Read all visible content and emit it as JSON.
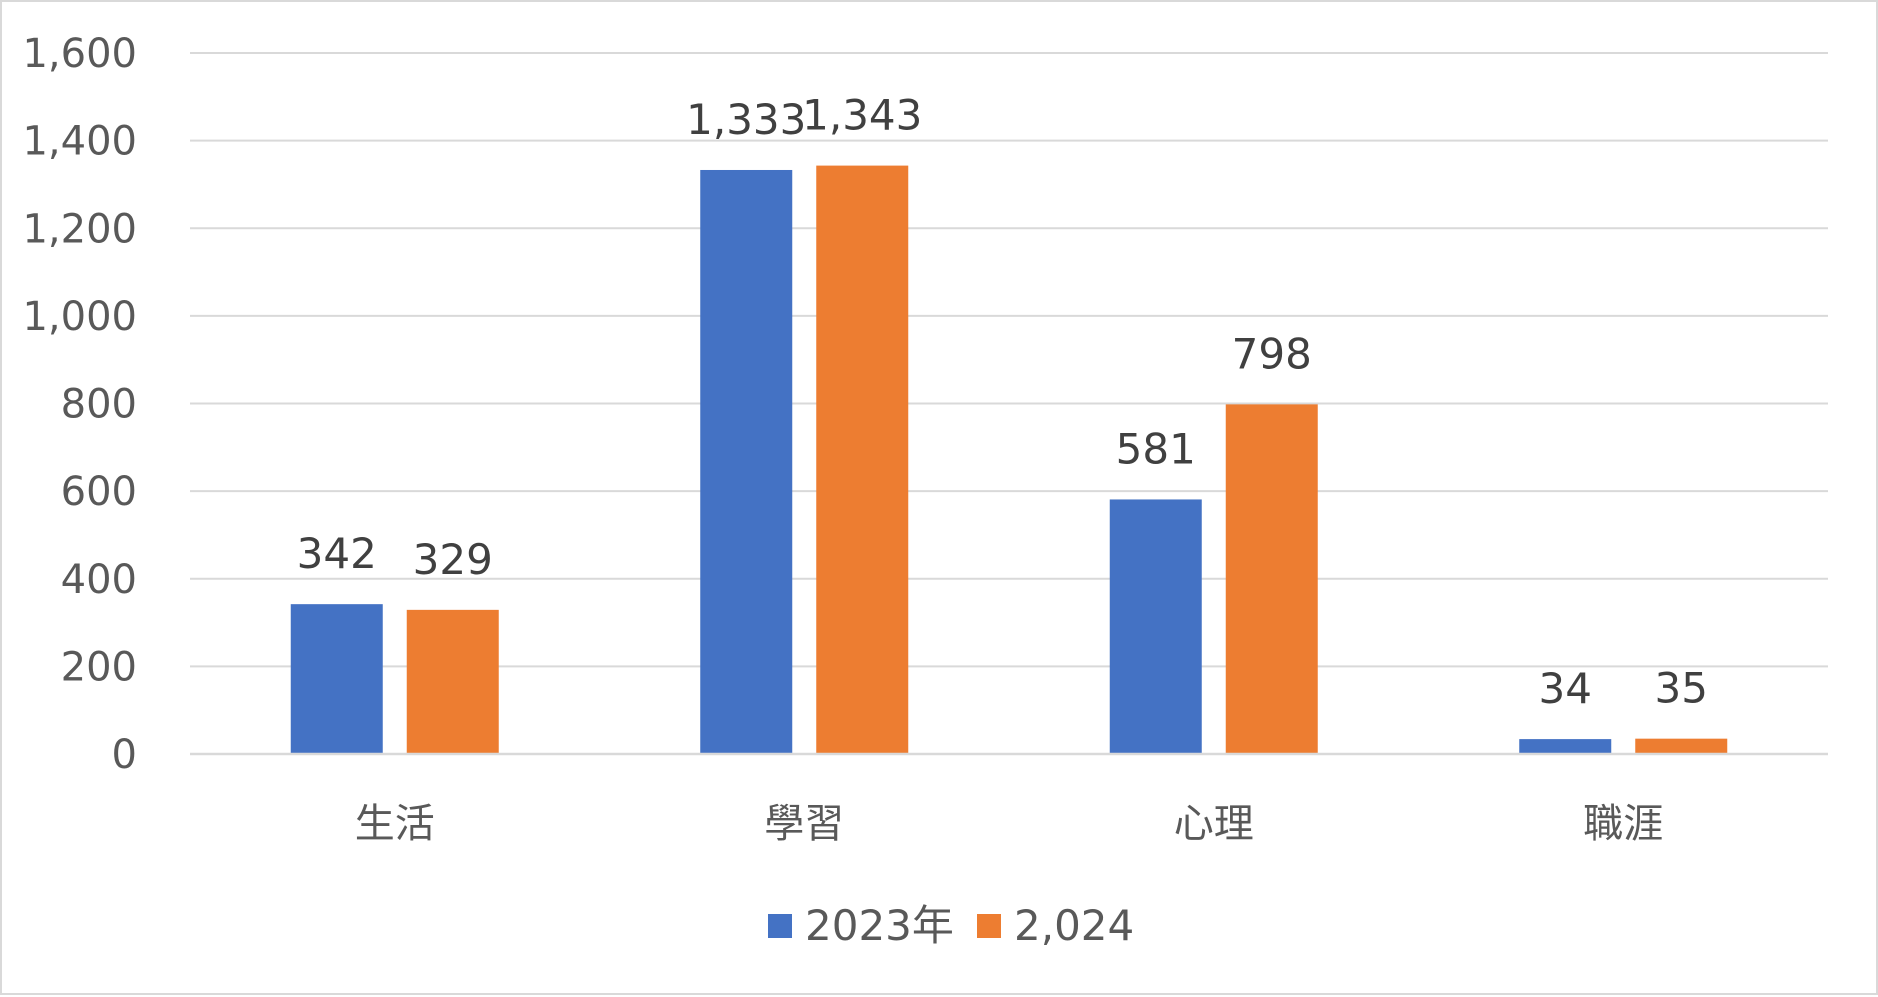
{
  "chart_data": {
    "type": "bar",
    "categories": [
      "生活",
      "學習",
      "心理",
      "職涯"
    ],
    "series": [
      {
        "name": "2023年",
        "values": [
          342,
          1333,
          581,
          34
        ],
        "color": "#4472C4"
      },
      {
        "name": "2,024",
        "values": [
          329,
          1343,
          798,
          35
        ],
        "color": "#ED7D31"
      }
    ],
    "data_labels": [
      [
        "342",
        "1,333",
        "581",
        "34"
      ],
      [
        "329",
        "1,343",
        "798",
        "35"
      ]
    ],
    "y_ticks": [
      0,
      200,
      400,
      600,
      800,
      1000,
      1200,
      1400,
      1600
    ],
    "y_tick_labels": [
      "0",
      "200",
      "400",
      "600",
      "800",
      "1,000",
      "1,200",
      "1,400",
      "1,600"
    ],
    "ylim": [
      0,
      1600
    ],
    "grid": true,
    "legend_position": "bottom",
    "title": "",
    "xlabel": "",
    "ylabel": ""
  }
}
